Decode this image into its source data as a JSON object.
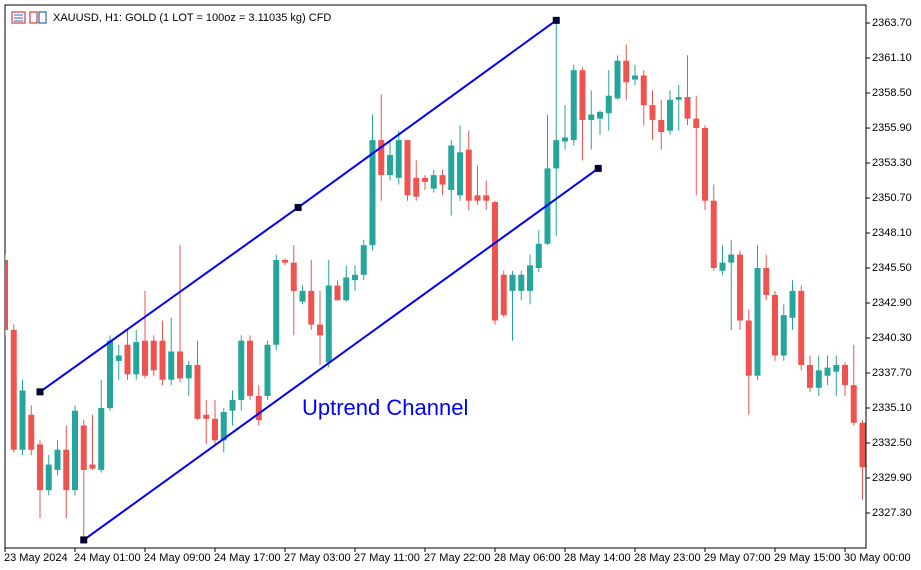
{
  "chart_data": {
    "type": "candlestick",
    "title": "XAUUSD, H1:  GOLD (1 LOT = 100oz = 3.11035 kg) CFD",
    "categories": [
      "23 May 2024",
      null,
      null,
      null,
      null,
      null,
      null,
      null,
      "24 May 01:00",
      null,
      null,
      null,
      null,
      null,
      null,
      null,
      "24 May 09:00",
      null,
      null,
      null,
      null,
      null,
      null,
      null,
      "24 May 17:00",
      null,
      null,
      null,
      null,
      null,
      null,
      null,
      "27 May 03:00",
      null,
      null,
      null,
      null,
      null,
      null,
      null,
      "27 May 11:00",
      null,
      null,
      null,
      null,
      null,
      null,
      null,
      "27 May 22:00",
      null,
      null,
      null,
      null,
      null,
      null,
      null,
      "28 May 06:00",
      null,
      null,
      null,
      null,
      null,
      null,
      null,
      "28 May 14:00",
      null,
      null,
      null,
      null,
      null,
      null,
      null,
      "28 May 23:00",
      null,
      null,
      null,
      null,
      null,
      null,
      null,
      "29 May 07:00",
      null,
      null,
      null,
      null,
      null,
      null,
      null,
      "29 May 15:00",
      null,
      null,
      null,
      null,
      null,
      null,
      null,
      "30 May 00:00",
      null,
      null
    ],
    "open": [
      2346.1,
      2340.9,
      2332.0,
      2334.6,
      2332.4,
      2329.0,
      2330.5,
      2332.0,
      2329.0,
      2333.8,
      2330.9,
      2330.5,
      2335.1,
      2338.6,
      2339.8,
      2337.6,
      2340.1,
      2340.1,
      2340.1,
      2337.2,
      2339.3,
      2337.3,
      2338.3,
      2334.6,
      2334.3,
      2332.7,
      2334.9,
      2335.7,
      2340.1,
      2336.0,
      2336.0,
      2339.8,
      2346.1,
      2345.9,
      2343.0,
      2343.8,
      2341.3,
      2338.5,
      2344.2,
      2343.1,
      2344.6,
      2345.0,
      2347.2,
      2355.0,
      2352.4,
      2352.2,
      2355.0,
      2352.2,
      2352.2,
      2351.4,
      2352.4,
      2351.3,
      2350.9,
      2354.3,
      2350.9,
      2350.9,
      2350.4,
      2345.0,
      2343.8,
      2343.8,
      2343.8,
      2345.5,
      2347.3,
      2352.9,
      2354.9,
      2355.0,
      2360.2,
      2356.5,
      2356.6,
      2357.0,
      2358.1,
      2360.9,
      2359.5,
      2359.8,
      2357.6,
      2356.5,
      2355.7,
      2358.0,
      2358.2,
      2356.6,
      2355.9,
      2350.5,
      2345.3,
      2345.9,
      2346.5,
      2341.6,
      2337.5,
      2345.5,
      2343.5,
      2339.0,
      2341.8,
      2343.8,
      2338.3,
      2336.6,
      2337.5,
      2337.8,
      2338.3,
      2336.8,
      2334.0
    ],
    "high": [
      2346.5,
      2341.3,
      2337.2,
      2335.3,
      2332.7,
      2331.6,
      2332.7,
      2333.8,
      2335.3,
      2334.2,
      2334.6,
      2337.2,
      2340.5,
      2339.8,
      2340.9,
      2340.9,
      2343.8,
      2340.5,
      2341.6,
      2341.8,
      2347.2,
      2338.6,
      2340.1,
      2335.7,
      2335.7,
      2335.1,
      2336.4,
      2340.5,
      2340.5,
      2336.8,
      2340.1,
      2346.5,
      2346.2,
      2347.2,
      2344.2,
      2346.1,
      2343.8,
      2346.1,
      2344.6,
      2345.7,
      2345.7,
      2347.6,
      2356.9,
      2358.4,
      2355.0,
      2355.7,
      2355.0,
      2353.5,
      2352.4,
      2352.8,
      2352.8,
      2355.0,
      2356.1,
      2355.7,
      2353.1,
      2352.0,
      2350.5,
      2345.3,
      2345.3,
      2345.3,
      2346.5,
      2348.3,
      2356.9,
      2363.9,
      2357.6,
      2360.6,
      2360.4,
      2358.7,
      2357.2,
      2360.2,
      2361.3,
      2362.1,
      2360.6,
      2360.2,
      2358.7,
      2358.0,
      2358.7,
      2359.1,
      2361.3,
      2358.3,
      2356.1,
      2351.7,
      2347.2,
      2347.6,
      2346.8,
      2342.4,
      2347.2,
      2346.5,
      2343.8,
      2342.8,
      2344.6,
      2344.2,
      2339.0,
      2339.0,
      2339.0,
      2339.0,
      2338.5,
      2339.8,
      2334.2
    ],
    "low": [
      2340.5,
      2331.8,
      2331.6,
      2331.6,
      2326.9,
      2328.6,
      2330.1,
      2326.9,
      2328.6,
      2325.3,
      2330.5,
      2330.3,
      2334.9,
      2337.2,
      2337.2,
      2337.2,
      2337.3,
      2337.5,
      2336.8,
      2336.8,
      2337.0,
      2336.0,
      2334.2,
      2332.4,
      2332.4,
      2331.8,
      2333.8,
      2334.9,
      2335.7,
      2333.8,
      2335.7,
      2339.4,
      2345.7,
      2340.5,
      2342.8,
      2340.9,
      2338.3,
      2338.1,
      2343.1,
      2343.0,
      2343.8,
      2344.6,
      2346.8,
      2350.5,
      2352.0,
      2351.7,
      2350.5,
      2350.5,
      2351.3,
      2351.1,
      2350.9,
      2349.4,
      2350.5,
      2349.8,
      2350.2,
      2349.8,
      2341.3,
      2341.8,
      2340.1,
      2343.1,
      2342.8,
      2345.2,
      2347.2,
      2347.9,
      2354.3,
      2354.6,
      2353.5,
      2354.3,
      2355.4,
      2355.7,
      2358.0,
      2358.0,
      2359.1,
      2356.1,
      2355.0,
      2354.3,
      2355.4,
      2355.7,
      2356.1,
      2350.9,
      2349.8,
      2345.3,
      2345.0,
      2340.9,
      2340.9,
      2334.6,
      2337.2,
      2343.1,
      2338.6,
      2338.6,
      2340.9,
      2337.9,
      2336.3,
      2336.0,
      2336.8,
      2336.0,
      2336.0,
      2333.8,
      2328.3
    ],
    "close": [
      2340.9,
      2332.0,
      2336.4,
      2332.0,
      2329.0,
      2330.9,
      2332.0,
      2329.0,
      2334.9,
      2330.5,
      2330.6,
      2335.1,
      2340.1,
      2339.0,
      2337.6,
      2340.0,
      2337.5,
      2337.9,
      2337.2,
      2339.3,
      2337.3,
      2338.3,
      2334.3,
      2334.3,
      2332.7,
      2334.8,
      2335.7,
      2340.1,
      2336.0,
      2334.2,
      2339.8,
      2346.1,
      2345.9,
      2343.8,
      2343.8,
      2341.3,
      2340.5,
      2344.2,
      2343.1,
      2344.8,
      2345.0,
      2347.2,
      2355.0,
      2352.4,
      2353.9,
      2355.0,
      2350.9,
      2350.8,
      2351.9,
      2352.4,
      2351.7,
      2354.6,
      2354.1,
      2350.5,
      2350.5,
      2350.5,
      2341.6,
      2342.0,
      2345.0,
      2345.0,
      2345.7,
      2347.3,
      2352.9,
      2355.0,
      2355.2,
      2360.2,
      2356.5,
      2356.9,
      2357.1,
      2358.3,
      2360.9,
      2359.3,
      2359.8,
      2357.6,
      2356.5,
      2355.6,
      2358.0,
      2358.2,
      2356.6,
      2355.9,
      2350.5,
      2345.5,
      2345.9,
      2346.5,
      2341.6,
      2337.5,
      2345.5,
      2343.5,
      2339.0,
      2342.0,
      2343.8,
      2338.3,
      2336.6,
      2337.9,
      2338.1,
      2338.3,
      2336.8,
      2334.0,
      2330.7
    ],
    "up_color": "#26a69a",
    "down_color": "#ef5350",
    "ylim": [
      2324.7,
      2365.04
    ],
    "yticks": [
      {
        "value": 2363.7,
        "label": "2363.70"
      },
      {
        "value": 2361.1,
        "label": "2361.10"
      },
      {
        "value": 2358.5,
        "label": "2358.50"
      },
      {
        "value": 2355.9,
        "label": "2355.90"
      },
      {
        "value": 2353.3,
        "label": "2353.30"
      },
      {
        "value": 2350.7,
        "label": "2350.70"
      },
      {
        "value": 2348.1,
        "label": "2348.10"
      },
      {
        "value": 2345.5,
        "label": "2345.50"
      },
      {
        "value": 2342.9,
        "label": "2342.90"
      },
      {
        "value": 2340.3,
        "label": "2340.30"
      },
      {
        "value": 2337.7,
        "label": "2337.70"
      },
      {
        "value": 2335.1,
        "label": "2335.10"
      },
      {
        "value": 2332.5,
        "label": "2332.50"
      },
      {
        "value": 2329.9,
        "label": "2329.90"
      },
      {
        "value": 2327.3,
        "label": "2327.30"
      }
    ],
    "grid": false,
    "channel_color": "#0000ff",
    "channel": [
      {
        "points": [
          {
            "x": 4,
            "y": 2336.3
          },
          {
            "x": 33.5,
            "y": 2350.0
          },
          {
            "x": 63,
            "y": 2363.9
          }
        ]
      },
      {
        "points": [
          {
            "x": 9,
            "y": 2325.3
          },
          {
            "x": 67.8,
            "y": 2352.9
          }
        ]
      }
    ],
    "annotation": "Uptrend Channel"
  }
}
